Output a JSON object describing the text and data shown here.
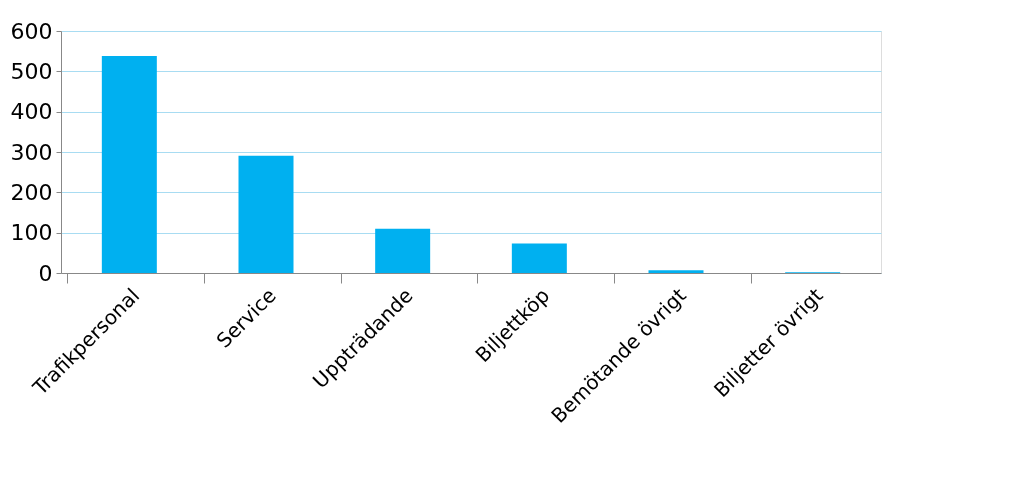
{
  "chart_data": {
    "type": "bar",
    "categories": [
      "Trafikpersonal",
      "Service",
      "Uppträdande",
      "Biljettköp",
      "Bemötande övrigt",
      "Biljetter övrigt"
    ],
    "values": [
      538,
      291,
      110,
      73,
      7,
      2
    ],
    "color": "#00b0f0",
    "ylim": [
      0,
      600
    ],
    "yticks": [
      0,
      100,
      200,
      300,
      400,
      500,
      600
    ],
    "grid": "y"
  }
}
